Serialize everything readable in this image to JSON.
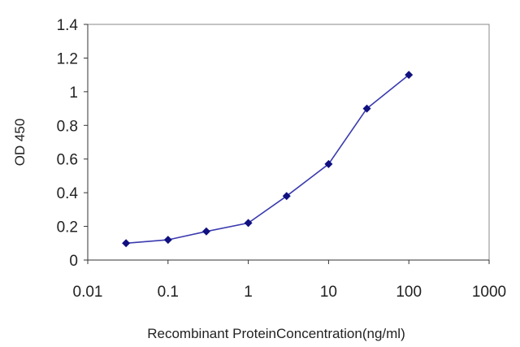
{
  "chart_data": {
    "type": "line",
    "xlabel": "Recombinant ProteinConcentration(ng/ml)",
    "ylabel": "OD 450",
    "x_scale": "log",
    "xlim": [
      0.01,
      1000
    ],
    "ylim": [
      0,
      1.4
    ],
    "x_ticks": [
      0.01,
      0.1,
      1,
      10,
      100,
      1000
    ],
    "x_tick_labels": [
      "0.01",
      "0.1",
      "1",
      "10",
      "100",
      "1000"
    ],
    "y_ticks": [
      0,
      0.2,
      0.4,
      0.6,
      0.8,
      1,
      1.2,
      1.4
    ],
    "y_tick_labels": [
      "0",
      "0.2",
      "0.4",
      "0.6",
      "0.8",
      "1",
      "1.2",
      "1.4"
    ],
    "grid": false,
    "legend": false,
    "series": [
      {
        "x": [
          0.03,
          0.1,
          0.3,
          1,
          3,
          10,
          30,
          100
        ],
        "y": [
          0.1,
          0.12,
          0.17,
          0.22,
          0.38,
          0.57,
          0.9,
          1.1
        ],
        "color": "#3a3ab0",
        "marker": "diamond",
        "marker_color": "#101080"
      }
    ],
    "plot_border_color": "#888888",
    "axis_color": "#333333"
  }
}
